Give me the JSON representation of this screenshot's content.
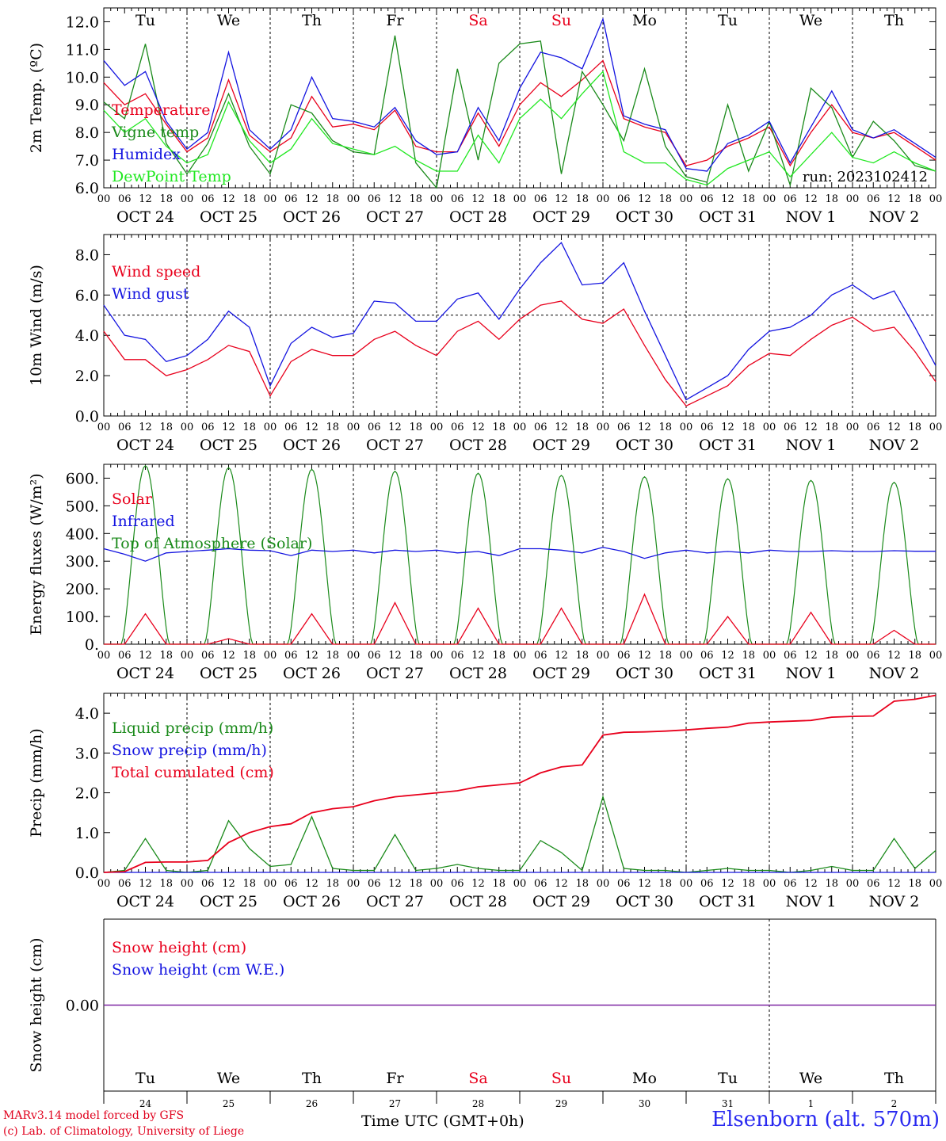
{
  "colors": {
    "red": "#e8001c",
    "blue": "#1414e0",
    "green": "#1a8a1a",
    "lightgreen": "#22e822",
    "purple": "#7a1fa0",
    "weekend": "#e8001c"
  },
  "days": [
    "Tu",
    "We",
    "Th",
    "Fr",
    "Sa",
    "Su",
    "Mo",
    "Tu",
    "We",
    "Th"
  ],
  "weekend_days": [
    4,
    5
  ],
  "date_labels": [
    "OCT 24",
    "OCT 25",
    "OCT 26",
    "OCT 27",
    "OCT 28",
    "OCT 29",
    "OCT 30",
    "OCT 31",
    "NOV  1",
    "NOV  2"
  ],
  "date_numbers": [
    "24",
    "25",
    "26",
    "27",
    "28",
    "29",
    "30",
    "31",
    "1",
    "2"
  ],
  "hour_labels": [
    "00",
    "06",
    "12",
    "18"
  ],
  "footer": {
    "credit_line1": "MARv3.14 model forced by GFS",
    "credit_line2": "(c) Lab. of Climatology, University of Liege",
    "time_label": "Time UTC (GMT+0h)",
    "station": "Elsenborn (alt. 570m)"
  },
  "chart_data": [
    {
      "type": "line",
      "ylabel": "2m Temp. (ºC)",
      "ylim": [
        6.0,
        12.5
      ],
      "yticks": [
        "6.0",
        "7.0",
        "8.0",
        "9.0",
        "10.0",
        "11.0",
        "12.0"
      ],
      "annotation": "run: 2023102412",
      "x_hours": [
        0,
        6,
        12,
        18,
        24,
        30,
        36,
        42,
        48,
        54,
        60,
        66,
        72,
        78,
        84,
        90,
        96,
        102,
        108,
        114,
        120,
        126,
        132,
        138,
        144,
        150,
        156,
        162,
        168,
        174,
        180,
        186,
        192,
        198,
        204,
        210,
        216,
        222,
        228,
        234,
        240
      ],
      "series": [
        {
          "name": "Temperature",
          "color": "red",
          "values": [
            9.8,
            9.0,
            9.4,
            8.3,
            7.3,
            7.8,
            9.9,
            7.9,
            7.3,
            7.8,
            9.3,
            8.2,
            8.3,
            8.1,
            8.8,
            7.5,
            7.3,
            7.3,
            8.7,
            7.5,
            9.0,
            9.8,
            9.3,
            9.9,
            10.6,
            8.5,
            8.2,
            8.0,
            6.8,
            7.0,
            7.5,
            7.8,
            8.2,
            6.8,
            8.0,
            9.0,
            8.0,
            7.8,
            8.0,
            7.5,
            7.0
          ]
        },
        {
          "name": "Vigne temp",
          "color": "green",
          "values": [
            9.1,
            8.5,
            11.2,
            7.6,
            6.5,
            7.6,
            9.4,
            7.5,
            6.5,
            9.0,
            8.7,
            7.7,
            7.3,
            7.2,
            11.5,
            6.9,
            6.0,
            10.3,
            7.0,
            10.5,
            11.2,
            11.3,
            6.5,
            10.2,
            9.0,
            7.7,
            10.3,
            7.5,
            6.4,
            6.2,
            9.0,
            6.6,
            8.4,
            6.1,
            9.6,
            8.9,
            7.1,
            8.4,
            7.7,
            6.8,
            6.6
          ]
        },
        {
          "name": "Humidex",
          "color": "blue",
          "values": [
            10.6,
            9.7,
            10.2,
            8.4,
            7.4,
            8.0,
            10.9,
            8.1,
            7.4,
            8.1,
            10.0,
            8.5,
            8.4,
            8.2,
            8.9,
            7.7,
            7.2,
            7.3,
            8.9,
            7.7,
            9.6,
            10.9,
            10.7,
            10.3,
            12.1,
            8.6,
            8.3,
            8.1,
            6.7,
            6.6,
            7.6,
            7.9,
            8.4,
            6.9,
            8.2,
            9.5,
            8.1,
            7.8,
            8.1,
            7.6,
            7.1
          ]
        },
        {
          "name": "DewPoint Temp",
          "color": "lightgreen",
          "values": [
            8.8,
            8.0,
            8.5,
            7.5,
            6.9,
            7.2,
            9.1,
            7.7,
            6.9,
            7.4,
            8.5,
            7.6,
            7.4,
            7.2,
            7.5,
            7.0,
            6.6,
            6.6,
            7.9,
            6.9,
            8.5,
            9.2,
            8.5,
            9.4,
            10.2,
            7.3,
            6.9,
            6.9,
            6.3,
            6.1,
            6.7,
            7.0,
            7.3,
            6.4,
            7.2,
            8.0,
            7.1,
            6.9,
            7.3,
            6.9,
            6.6
          ]
        }
      ]
    },
    {
      "type": "line",
      "ylabel": "10m Wind (m/s)",
      "ylim": [
        0.0,
        9.0
      ],
      "yticks": [
        "0.0",
        "2.0",
        "4.0",
        "6.0",
        "8.0"
      ],
      "ref_line": 5.0,
      "x_hours": [
        0,
        6,
        12,
        18,
        24,
        30,
        36,
        42,
        48,
        54,
        60,
        66,
        72,
        78,
        84,
        90,
        96,
        102,
        108,
        114,
        120,
        126,
        132,
        138,
        144,
        150,
        156,
        162,
        168,
        174,
        180,
        186,
        192,
        198,
        204,
        210,
        216,
        222,
        228,
        234,
        240
      ],
      "series": [
        {
          "name": "Wind speed",
          "color": "red",
          "values": [
            4.2,
            2.8,
            2.8,
            2.0,
            2.3,
            2.8,
            3.5,
            3.2,
            1.0,
            2.7,
            3.3,
            3.0,
            3.0,
            3.8,
            4.2,
            3.5,
            3.0,
            4.2,
            4.7,
            3.8,
            4.8,
            5.5,
            5.7,
            4.8,
            4.6,
            5.3,
            3.5,
            1.8,
            0.5,
            1.0,
            1.5,
            2.5,
            3.1,
            3.0,
            3.8,
            4.5,
            4.9,
            4.2,
            4.4,
            3.2,
            1.7
          ]
        },
        {
          "name": "Wind gust",
          "color": "blue",
          "values": [
            5.5,
            4.0,
            3.8,
            2.7,
            3.0,
            3.8,
            5.2,
            4.4,
            1.5,
            3.6,
            4.4,
            3.9,
            4.1,
            5.7,
            5.6,
            4.7,
            4.7,
            5.8,
            6.1,
            4.8,
            6.3,
            7.6,
            8.6,
            6.5,
            6.6,
            7.6,
            5.2,
            3.0,
            0.8,
            1.4,
            2.0,
            3.3,
            4.2,
            4.4,
            5.0,
            6.0,
            6.5,
            5.8,
            6.2,
            4.4,
            2.5
          ]
        }
      ]
    },
    {
      "type": "line",
      "ylabel": "Energy fluxes (W/m²)",
      "ylim": [
        0,
        650
      ],
      "yticks": [
        "0.",
        "100.",
        "200.",
        "300.",
        "400.",
        "500.",
        "600."
      ],
      "x_hours": [
        0,
        6,
        12,
        18,
        24,
        30,
        36,
        42,
        48,
        54,
        60,
        66,
        72,
        78,
        84,
        90,
        96,
        102,
        108,
        114,
        120,
        126,
        132,
        138,
        144,
        150,
        156,
        162,
        168,
        174,
        180,
        186,
        192,
        198,
        204,
        210,
        216,
        222,
        228,
        234,
        240
      ],
      "toa_peaks": [
        645,
        638,
        632,
        625,
        618,
        610,
        605,
        598,
        592,
        585
      ],
      "series": [
        {
          "name": "Solar",
          "color": "red",
          "values": [
            0,
            0,
            110,
            0,
            0,
            0,
            20,
            0,
            0,
            0,
            110,
            0,
            0,
            0,
            150,
            0,
            0,
            0,
            130,
            0,
            0,
            0,
            130,
            0,
            0,
            0,
            180,
            0,
            0,
            0,
            100,
            0,
            0,
            0,
            115,
            0,
            0,
            0,
            50,
            0,
            0
          ]
        },
        {
          "name": "Infrared",
          "color": "blue",
          "values": [
            345,
            325,
            300,
            330,
            335,
            340,
            345,
            340,
            338,
            320,
            340,
            335,
            340,
            330,
            340,
            335,
            340,
            330,
            335,
            320,
            345,
            345,
            340,
            330,
            350,
            335,
            310,
            330,
            340,
            330,
            335,
            330,
            340,
            335,
            335,
            338,
            335,
            335,
            338,
            336,
            336
          ]
        },
        {
          "name": "Top of Atmosphere (Solar)",
          "color": "green",
          "values": []
        }
      ]
    },
    {
      "type": "line",
      "ylabel": "Precip (mm/h)",
      "ylim": [
        0.0,
        4.5
      ],
      "yticks": [
        "0.0",
        "1.0",
        "2.0",
        "3.0",
        "4.0"
      ],
      "x_hours": [
        0,
        6,
        12,
        18,
        24,
        30,
        36,
        42,
        48,
        54,
        60,
        66,
        72,
        78,
        84,
        90,
        96,
        102,
        108,
        114,
        120,
        126,
        132,
        138,
        144,
        150,
        156,
        162,
        168,
        174,
        180,
        186,
        192,
        198,
        204,
        210,
        216,
        222,
        228,
        234,
        240
      ],
      "series": [
        {
          "name": "Liquid precip (mm/h)",
          "color": "green",
          "values": [
            0,
            0.05,
            0.85,
            0.05,
            0,
            0.05,
            1.3,
            0.6,
            0.15,
            0.2,
            1.4,
            0.1,
            0.05,
            0.05,
            0.95,
            0.05,
            0.1,
            0.2,
            0.1,
            0.05,
            0.05,
            0.8,
            0.5,
            0.05,
            1.9,
            0.1,
            0.05,
            0.05,
            0,
            0.05,
            0.1,
            0.05,
            0.05,
            0,
            0.05,
            0.15,
            0.05,
            0.05,
            0.85,
            0.1,
            0.55
          ]
        },
        {
          "name": "Snow precip (mm/h)",
          "color": "blue",
          "values": [
            0,
            0,
            0,
            0,
            0,
            0,
            0,
            0,
            0,
            0,
            0,
            0,
            0,
            0,
            0,
            0,
            0,
            0,
            0,
            0,
            0,
            0,
            0,
            0,
            0,
            0,
            0,
            0,
            0,
            0,
            0,
            0,
            0,
            0,
            0,
            0,
            0,
            0,
            0,
            0,
            0
          ]
        },
        {
          "name": "Total cumulated (cm)",
          "color": "red",
          "values": [
            0,
            0.02,
            0.25,
            0.26,
            0.26,
            0.3,
            0.75,
            1.0,
            1.15,
            1.22,
            1.5,
            1.6,
            1.65,
            1.8,
            1.9,
            1.95,
            2.0,
            2.05,
            2.15,
            2.2,
            2.25,
            2.5,
            2.65,
            2.7,
            3.45,
            3.52,
            3.53,
            3.55,
            3.58,
            3.62,
            3.65,
            3.75,
            3.78,
            3.8,
            3.82,
            3.9,
            3.92,
            3.93,
            4.3,
            4.35,
            4.45
          ]
        }
      ]
    },
    {
      "type": "line",
      "ylabel": "Snow height (cm)",
      "ylim": [
        -1.0,
        1.0
      ],
      "yticks": [
        "0.00"
      ],
      "series": [
        {
          "name": "Snow height (cm)",
          "color": "red",
          "values": [
            0,
            0
          ]
        },
        {
          "name": "Snow height (cm W.E.)",
          "color": "blue",
          "values": [
            0,
            0
          ]
        }
      ]
    }
  ]
}
